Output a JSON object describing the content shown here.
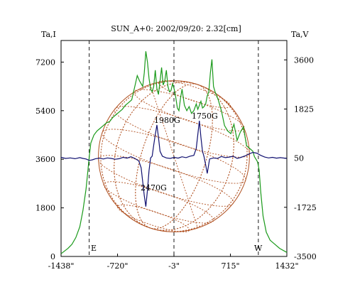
{
  "chart_data": {
    "type": "line",
    "title": "SUN_A+0: 2002/09/20: 2.32[cm]",
    "xlabel": "",
    "x_ticks": [
      "-1438\"",
      "-720\"",
      "-3\"",
      "715\"",
      "1432\""
    ],
    "x_tick_values": [
      -1438,
      -720,
      -3,
      715,
      1432
    ],
    "xlim": [
      -1438,
      1432
    ],
    "y_left": {
      "label": "Ta,I",
      "ticks": [
        0,
        1800,
        3600,
        5400,
        7200
      ],
      "ylim": [
        0,
        8000
      ]
    },
    "y_right": {
      "label": "Ta,V",
      "ticks": [
        "3600",
        "1825",
        "50",
        "-1725",
        "-3500"
      ],
      "tick_values": [
        3600,
        1825,
        50,
        -1725,
        -3500
      ],
      "ylim": [
        -3500,
        4300
      ]
    },
    "vlines_dashed": [
      -1080,
      -3,
      1070
    ],
    "limb_markers": {
      "east": "E",
      "west": "W"
    },
    "disk_overlay": {
      "center_x": -3,
      "radius_arcsec": 960,
      "color": "#b05020"
    },
    "series": [
      {
        "axis": "left",
        "color": "#1a9a1a",
        "x": [
          -1438,
          -1350,
          -1300,
          -1250,
          -1200,
          -1160,
          -1120,
          -1100,
          -1080,
          -1060,
          -1020,
          -980,
          -940,
          -900,
          -860,
          -820,
          -780,
          -740,
          -700,
          -660,
          -620,
          -580,
          -540,
          -500,
          -470,
          -440,
          -420,
          -400,
          -380,
          -360,
          -340,
          -320,
          -300,
          -280,
          -260,
          -240,
          -220,
          -200,
          -180,
          -160,
          -140,
          -120,
          -100,
          -80,
          -60,
          -40,
          -20,
          0,
          20,
          40,
          60,
          80,
          100,
          130,
          160,
          190,
          220,
          250,
          280,
          300,
          320,
          340,
          360,
          380,
          400,
          420,
          440,
          460,
          480,
          500,
          520,
          560,
          600,
          640,
          680,
          720,
          760,
          800,
          840,
          880,
          920,
          960,
          1000,
          1020,
          1040,
          1060,
          1080,
          1100,
          1130,
          1170,
          1220,
          1280,
          1340,
          1432
        ],
        "y": [
          100,
          300,
          450,
          700,
          1100,
          1700,
          2500,
          3100,
          3700,
          4200,
          4500,
          4650,
          4750,
          4850,
          4950,
          5000,
          5150,
          5250,
          5350,
          5450,
          5600,
          5700,
          5800,
          6300,
          6700,
          6500,
          6400,
          6300,
          6800,
          7600,
          7200,
          6600,
          6200,
          6100,
          6300,
          6900,
          6200,
          6000,
          6500,
          7000,
          6350,
          6500,
          6900,
          6300,
          6100,
          6150,
          6400,
          6200,
          5900,
          5500,
          5400,
          5850,
          6200,
          5600,
          5400,
          5550,
          5300,
          5400,
          5650,
          5450,
          5600,
          5750,
          5500,
          5550,
          5650,
          5950,
          6100,
          6800,
          7300,
          6300,
          6100,
          5800,
          5400,
          4850,
          4650,
          4550,
          4900,
          4300,
          4600,
          4800,
          4100,
          4000,
          3900,
          3700,
          3600,
          3500,
          3200,
          2400,
          1500,
          900,
          600,
          450,
          300,
          150
        ]
      },
      {
        "axis": "right",
        "color": "#101070",
        "x": [
          -1438,
          -1380,
          -1320,
          -1260,
          -1200,
          -1160,
          -1120,
          -1080,
          -1040,
          -1000,
          -950,
          -900,
          -850,
          -800,
          -750,
          -700,
          -650,
          -600,
          -550,
          -500,
          -450,
          -420,
          -400,
          -380,
          -360,
          -340,
          -320,
          -300,
          -280,
          -260,
          -240,
          -220,
          -200,
          -180,
          -150,
          -100,
          -50,
          0,
          50,
          100,
          150,
          200,
          250,
          280,
          300,
          320,
          340,
          360,
          380,
          400,
          420,
          450,
          500,
          550,
          600,
          650,
          700,
          750,
          800,
          850,
          900,
          950,
          1000,
          1050,
          1100,
          1150,
          1200,
          1250,
          1300,
          1350,
          1432
        ],
        "y": [
          80,
          40,
          60,
          30,
          70,
          40,
          20,
          -30,
          -10,
          30,
          50,
          20,
          60,
          40,
          10,
          30,
          80,
          50,
          100,
          40,
          -50,
          -300,
          -800,
          -1300,
          -1700,
          -1100,
          -400,
          60,
          120,
          520,
          900,
          1250,
          800,
          300,
          120,
          60,
          40,
          80,
          50,
          100,
          70,
          120,
          150,
          400,
          900,
          1400,
          800,
          300,
          100,
          -200,
          -500,
          20,
          60,
          40,
          110,
          70,
          90,
          120,
          40,
          80,
          130,
          200,
          260,
          230,
          150,
          90,
          60,
          80,
          50,
          70,
          40
        ]
      }
    ],
    "annotations": [
      "1980G",
      "1750G",
      "2470G"
    ]
  }
}
